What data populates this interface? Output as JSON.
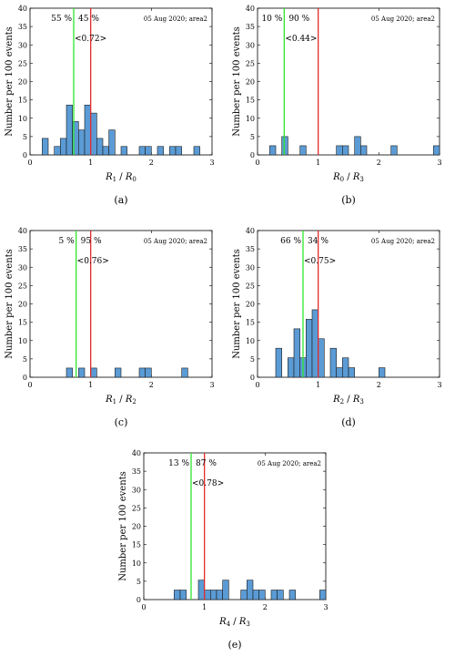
{
  "chart_data": [
    {
      "type": "bar",
      "panel_caption": "(a)",
      "ylabel": "Number per 100 events",
      "xlabel_main": "R",
      "xlabel_sub1": "1",
      "xlabel_sep": " / ",
      "xlabel_main2": "R",
      "xlabel_sub2": "0",
      "tag": "05 Aug 2020; area2",
      "pct_left": "55 %",
      "pct_right": "45 %",
      "median_label": "<0.72>",
      "green_line_x": 0.72,
      "red_line_x": 1.0,
      "xlim": [
        0,
        3
      ],
      "ylim": [
        0,
        40
      ],
      "xticks": [
        "0",
        "1",
        "2",
        "3"
      ],
      "yticks": [
        "0",
        "5",
        "10",
        "15",
        "20",
        "25",
        "30",
        "35",
        "40"
      ],
      "bin_width": 0.1,
      "bar_color": "#5b9bd5",
      "bars": [
        [
          0.2,
          4.5
        ],
        [
          0.4,
          2.3
        ],
        [
          0.5,
          4.5
        ],
        [
          0.6,
          13.6
        ],
        [
          0.7,
          9.1
        ],
        [
          0.8,
          6.8
        ],
        [
          0.9,
          13.6
        ],
        [
          1.0,
          11.4
        ],
        [
          1.1,
          4.5
        ],
        [
          1.2,
          2.3
        ],
        [
          1.3,
          6.8
        ],
        [
          1.5,
          2.3
        ],
        [
          1.8,
          2.3
        ],
        [
          1.9,
          2.3
        ],
        [
          2.1,
          2.3
        ],
        [
          2.3,
          2.3
        ],
        [
          2.4,
          2.3
        ],
        [
          2.7,
          2.3
        ]
      ]
    },
    {
      "type": "bar",
      "panel_caption": "(b)",
      "ylabel": "Number per 100 events",
      "xlabel_main": "R",
      "xlabel_sub1": "0",
      "xlabel_sep": " / ",
      "xlabel_main2": "R",
      "xlabel_sub2": "3",
      "tag": "05 Aug 2020; area2",
      "pct_left": "10 %",
      "pct_right": "90 %",
      "median_label": "<0.44>",
      "green_line_x": 0.44,
      "red_line_x": 1.0,
      "xlim": [
        0,
        3
      ],
      "ylim": [
        0,
        40
      ],
      "xticks": [
        "0",
        "1",
        "2",
        "3"
      ],
      "yticks": [
        "0",
        "5",
        "10",
        "15",
        "20",
        "25",
        "30",
        "35",
        "40"
      ],
      "bin_width": 0.1,
      "bar_color": "#5b9bd5",
      "bars": [
        [
          0.2,
          2.5
        ],
        [
          0.4,
          5.0
        ],
        [
          0.7,
          2.5
        ],
        [
          1.3,
          2.5
        ],
        [
          1.4,
          2.5
        ],
        [
          1.6,
          5.0
        ],
        [
          1.7,
          2.5
        ],
        [
          2.2,
          2.5
        ],
        [
          2.9,
          2.5
        ]
      ]
    },
    {
      "type": "bar",
      "panel_caption": "(c)",
      "ylabel": "Number per 100 events",
      "xlabel_main": "R",
      "xlabel_sub1": "1",
      "xlabel_sep": " / ",
      "xlabel_main2": "R",
      "xlabel_sub2": "2",
      "tag": "05 Aug 2020; area2",
      "pct_left": "5 %",
      "pct_right": "95 %",
      "median_label": "<0.76>",
      "green_line_x": 0.76,
      "red_line_x": 1.0,
      "xlim": [
        0,
        3
      ],
      "ylim": [
        0,
        40
      ],
      "xticks": [
        "0",
        "1",
        "2",
        "3"
      ],
      "yticks": [
        "0",
        "5",
        "10",
        "15",
        "20",
        "25",
        "30",
        "35",
        "40"
      ],
      "bin_width": 0.1,
      "bar_color": "#5b9bd5",
      "bars": [
        [
          0.6,
          2.5
        ],
        [
          0.8,
          2.5
        ],
        [
          1.0,
          2.5
        ],
        [
          1.4,
          2.5
        ],
        [
          1.8,
          2.5
        ],
        [
          1.9,
          2.5
        ],
        [
          2.5,
          2.5
        ]
      ]
    },
    {
      "type": "bar",
      "panel_caption": "(d)",
      "ylabel": "Number per 100 events",
      "xlabel_main": "R",
      "xlabel_sub1": "2",
      "xlabel_sep": " / ",
      "xlabel_main2": "R",
      "xlabel_sub2": "3",
      "tag": "05 Aug 2020; area2",
      "pct_left": "66 %",
      "pct_right": "34 %",
      "median_label": "<0.75>",
      "green_line_x": 0.75,
      "red_line_x": 1.0,
      "xlim": [
        0,
        3
      ],
      "ylim": [
        0,
        40
      ],
      "xticks": [
        "0",
        "1",
        "2",
        "3"
      ],
      "yticks": [
        "0",
        "5",
        "10",
        "15",
        "20",
        "25",
        "30",
        "35",
        "40"
      ],
      "bin_width": 0.1,
      "bar_color": "#5b9bd5",
      "bars": [
        [
          0.3,
          7.9
        ],
        [
          0.5,
          5.3
        ],
        [
          0.6,
          13.2
        ],
        [
          0.7,
          5.3
        ],
        [
          0.8,
          15.8
        ],
        [
          0.9,
          18.4
        ],
        [
          1.0,
          10.5
        ],
        [
          1.2,
          7.9
        ],
        [
          1.3,
          2.6
        ],
        [
          1.4,
          5.3
        ],
        [
          1.5,
          2.6
        ],
        [
          2.0,
          2.6
        ]
      ]
    },
    {
      "type": "bar",
      "panel_caption": "(e)",
      "ylabel": "Number per 100 events",
      "xlabel_main": "R",
      "xlabel_sub1": "4",
      "xlabel_sep": " / ",
      "xlabel_main2": "R",
      "xlabel_sub2": "3",
      "tag": "05 Aug 2020; area2",
      "pct_left": "13 %",
      "pct_right": "87 %",
      "median_label": "<0.78>",
      "green_line_x": 0.78,
      "red_line_x": 1.0,
      "xlim": [
        0,
        3
      ],
      "ylim": [
        0,
        40
      ],
      "xticks": [
        "0",
        "1",
        "2",
        "3"
      ],
      "yticks": [
        "0",
        "5",
        "10",
        "15",
        "20",
        "25",
        "30",
        "35",
        "40"
      ],
      "bin_width": 0.1,
      "bar_color": "#5b9bd5",
      "bars": [
        [
          0.5,
          2.6
        ],
        [
          0.6,
          2.6
        ],
        [
          0.9,
          5.3
        ],
        [
          1.0,
          2.6
        ],
        [
          1.1,
          2.6
        ],
        [
          1.2,
          2.6
        ],
        [
          1.3,
          5.3
        ],
        [
          1.6,
          2.6
        ],
        [
          1.7,
          5.3
        ],
        [
          1.8,
          2.6
        ],
        [
          1.9,
          2.6
        ],
        [
          2.1,
          2.6
        ],
        [
          2.2,
          2.6
        ],
        [
          2.4,
          2.6
        ],
        [
          2.9,
          2.6
        ]
      ]
    }
  ]
}
